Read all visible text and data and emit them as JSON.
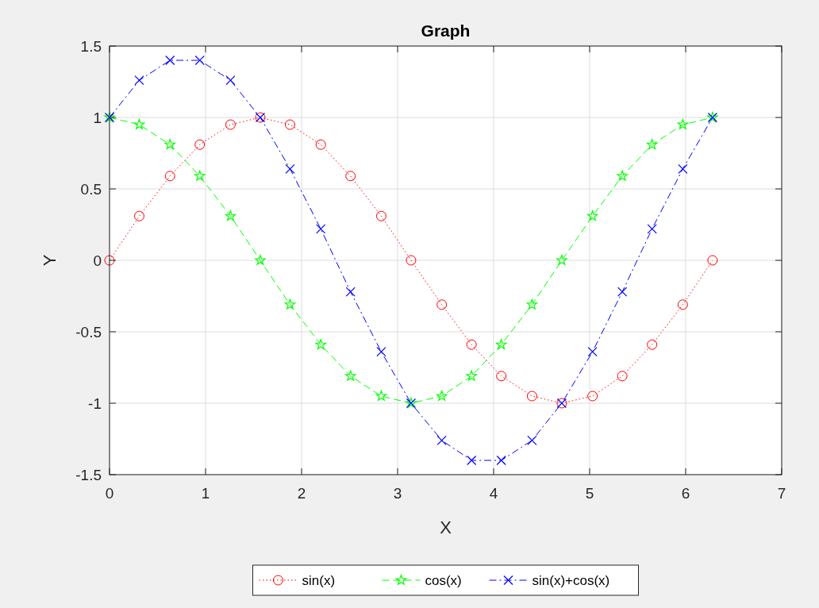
{
  "chart_data": {
    "type": "line",
    "title": "Graph",
    "xlabel": "X",
    "ylabel": "Y",
    "x": [
      0,
      0.31,
      0.63,
      0.94,
      1.26,
      1.57,
      1.88,
      2.2,
      2.51,
      2.83,
      3.14,
      3.46,
      3.77,
      4.08,
      4.4,
      4.71,
      5.03,
      5.34,
      5.65,
      5.97,
      6.28
    ],
    "series": [
      {
        "name": "sin(x)",
        "color": "#ff0000",
        "marker": "circle",
        "line_style": "dotted",
        "values": [
          0,
          0.31,
          0.59,
          0.81,
          0.95,
          1,
          0.95,
          0.81,
          0.59,
          0.31,
          0,
          -0.31,
          -0.59,
          -0.81,
          -0.95,
          -1,
          -0.95,
          -0.81,
          -0.59,
          -0.31,
          0
        ]
      },
      {
        "name": "cos(x)",
        "color": "#00ff00",
        "marker": "star",
        "line_style": "dashed",
        "values": [
          1,
          0.95,
          0.81,
          0.59,
          0.31,
          0,
          -0.31,
          -0.59,
          -0.81,
          -0.95,
          -1,
          -0.95,
          -0.81,
          -0.59,
          -0.31,
          0,
          0.31,
          0.59,
          0.81,
          0.95,
          1
        ]
      },
      {
        "name": "sin(x)+cos(x)",
        "color": "#0000ff",
        "marker": "cross",
        "line_style": "dashdot",
        "values": [
          1,
          1.26,
          1.4,
          1.4,
          1.26,
          1,
          0.64,
          0.22,
          -0.22,
          -0.64,
          -1,
          -1.26,
          -1.4,
          -1.4,
          -1.26,
          -1,
          -0.64,
          -0.22,
          0.22,
          0.64,
          1
        ]
      }
    ],
    "xlim": [
      0,
      7
    ],
    "xticks": [
      0,
      1,
      2,
      3,
      4,
      5,
      6,
      7
    ],
    "ylim": [
      -1.5,
      1.5
    ],
    "yticks": [
      -1.5,
      -1,
      -0.5,
      0,
      0.5,
      1,
      1.5
    ],
    "grid": true,
    "legend": "bottom"
  }
}
